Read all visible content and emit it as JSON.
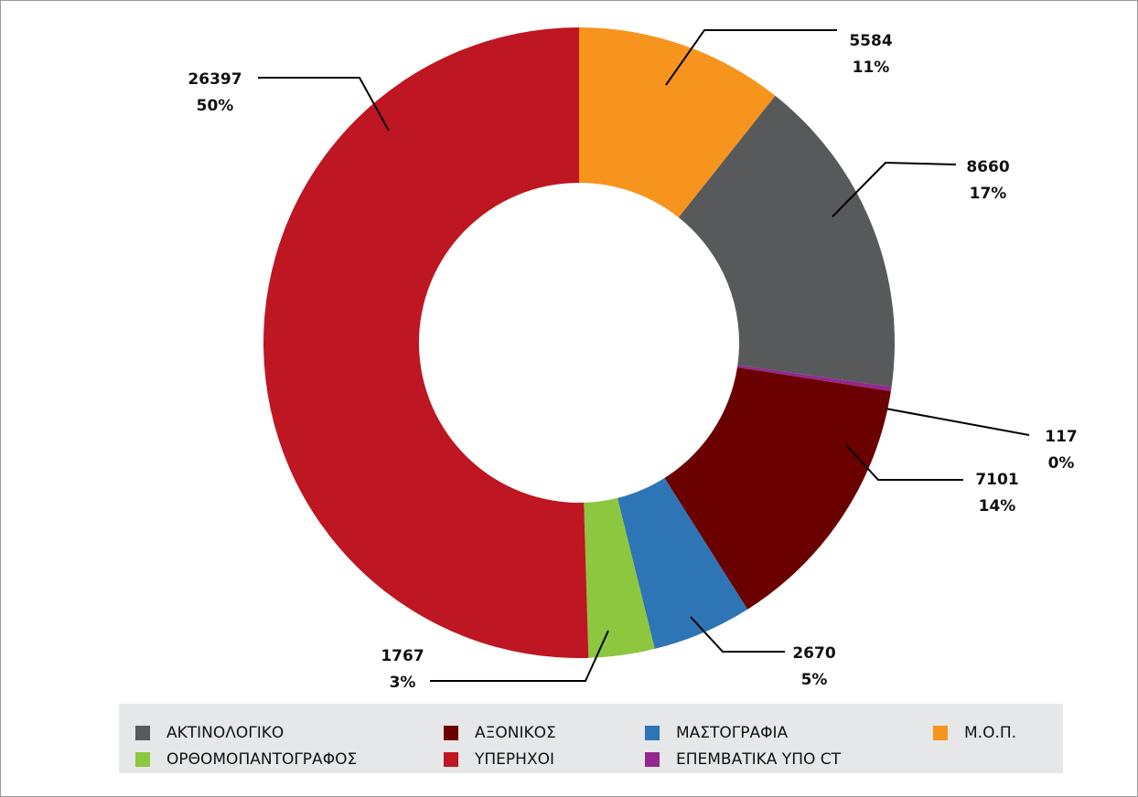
{
  "chart_data": {
    "type": "donut",
    "categories": [
      "Μ.Ο.Π.",
      "ΑΚΤΙΝΟΛΟΓΙΚΟ",
      "ΕΠΕΜΒΑΤΙΚΑ ΥΠΟ CT",
      "ΑΞΟΝΙΚΟΣ",
      "ΜΑΣΤΟΓΡΑΦΙΑ",
      "ΟΡΘΟΜΟΠΑΝΤΟΓΡΑΦΟΣ",
      "ΥΠΕΡΗΧΟΙ"
    ],
    "values": [
      5584,
      8660,
      117,
      7101,
      2670,
      1767,
      26397
    ],
    "percent_labels": [
      "11%",
      "17%",
      "0%",
      "14%",
      "5%",
      "3%",
      "50%"
    ],
    "colors": [
      "#f7941d",
      "#58595b",
      "#93278f",
      "#6b0000",
      "#2e75b6",
      "#8dc63f",
      "#be1622"
    ],
    "legend": "bottom"
  }
}
